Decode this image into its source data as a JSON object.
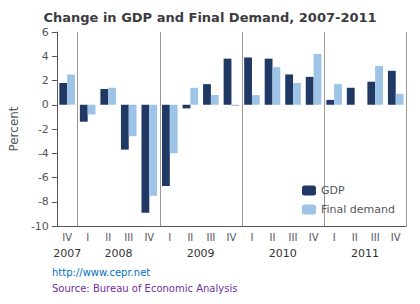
{
  "chart_data": {
    "type": "bar",
    "title": "Change in GDP and Final Demand, 2007-2011",
    "ylabel": "Percent",
    "categories": [
      "IV",
      "I",
      "II",
      "III",
      "IV",
      "I",
      "II",
      "III",
      "IV",
      "I",
      "II",
      "III",
      "IV",
      "I",
      "II",
      "III",
      "IV"
    ],
    "group_labels": [
      "2007",
      "2008",
      "2009",
      "2010",
      "2011"
    ],
    "series": [
      {
        "name": "GDP",
        "color": "#1f3864",
        "values": [
          1.8,
          -1.4,
          1.3,
          -3.7,
          -8.9,
          -6.7,
          -0.3,
          1.7,
          3.8,
          3.9,
          3.8,
          2.5,
          2.3,
          0.4,
          1.4,
          1.9,
          2.8
        ]
      },
      {
        "name": "Final demand",
        "color": "#9dc3e6",
        "values": [
          2.5,
          -0.8,
          1.4,
          -2.6,
          -7.5,
          -4.0,
          1.4,
          0.8,
          -0.1,
          0.8,
          3.1,
          1.8,
          4.2,
          1.7,
          0.0,
          3.2,
          0.9
        ]
      }
    ],
    "ylim": [
      -10,
      6
    ],
    "yticks": [
      -10,
      -8,
      -6,
      -4,
      -2,
      0,
      2,
      4,
      6
    ],
    "grid": false,
    "legend": "lower right",
    "annotations": [
      {
        "text": "http://www.cepr.net",
        "color": "#0070c0"
      },
      {
        "text": "Source: Bureau of Economic Analysis",
        "color": "#7030a0"
      }
    ]
  }
}
